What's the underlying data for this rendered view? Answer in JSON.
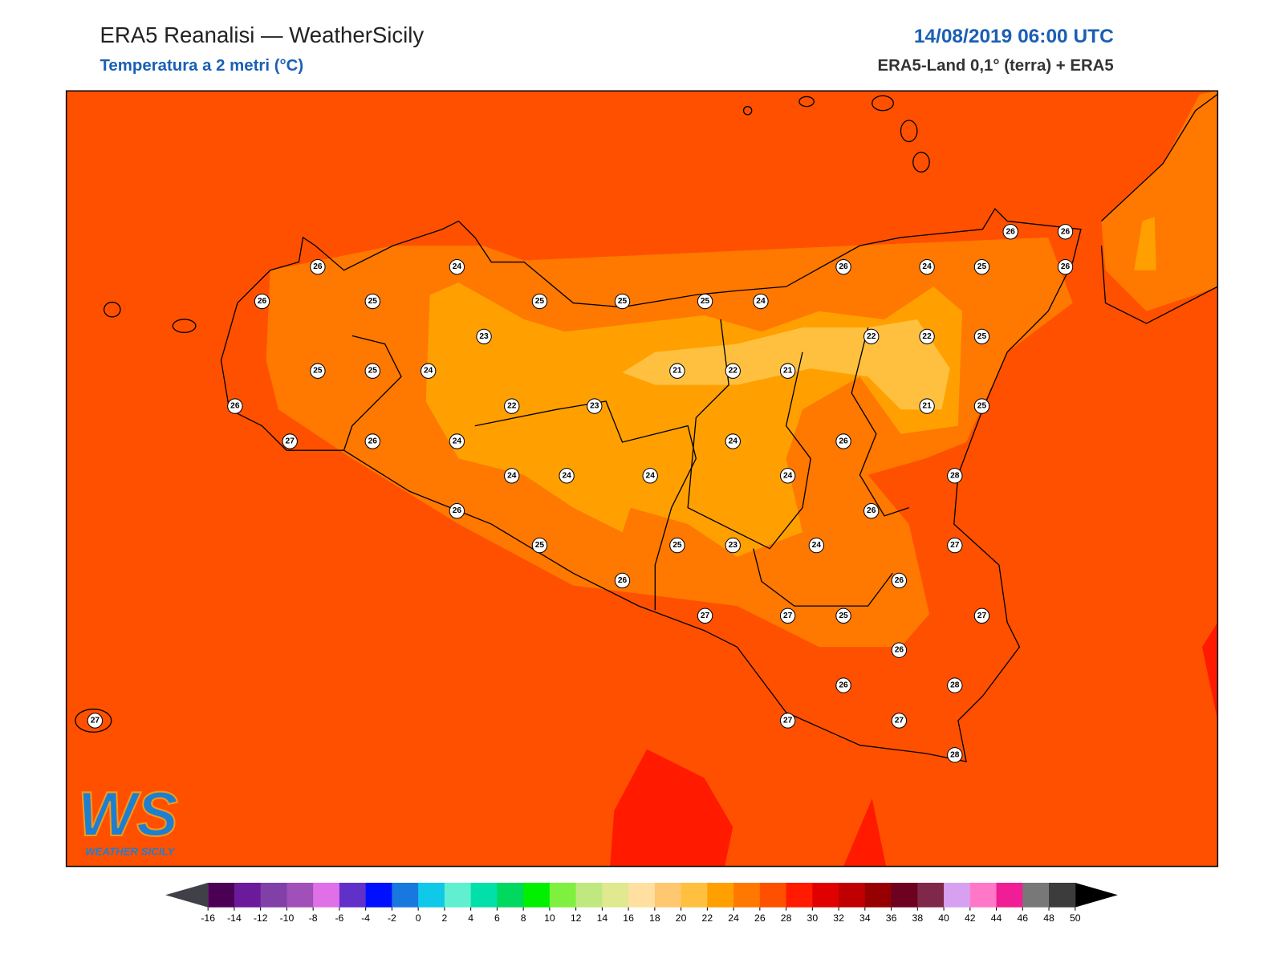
{
  "header": {
    "title": "ERA5 Reanalisi — WeatherSicily",
    "subtitle": "Temperatura a 2 metri (°C)",
    "date": "14/08/2019 06:00 UTC",
    "source": "ERA5-Land 0,1° (terra) + ERA5"
  },
  "logo": {
    "mark": "WS",
    "name": "WEATHER SICILY"
  },
  "stations": [
    26,
    24,
    26,
    25,
    25,
    25,
    25,
    24,
    26,
    24,
    25,
    26,
    26,
    26,
    23,
    22,
    22,
    25,
    25,
    25,
    24,
    21,
    22,
    21,
    26,
    22,
    23,
    21,
    25,
    27,
    26,
    24,
    24,
    26,
    24,
    24,
    24,
    24,
    28,
    26,
    26,
    25,
    25,
    23,
    24,
    27,
    26,
    26,
    27,
    27,
    25,
    27,
    26,
    26,
    28,
    27,
    27,
    27,
    28
  ],
  "colorbar": {
    "ticks": [
      -16,
      -14,
      -12,
      -10,
      -8,
      -6,
      -4,
      -2,
      0,
      2,
      4,
      6,
      8,
      10,
      12,
      14,
      16,
      18,
      20,
      22,
      24,
      26,
      28,
      30,
      32,
      34,
      36,
      38,
      40,
      42,
      44,
      46,
      48,
      50
    ],
    "colors": [
      "#4b0055",
      "#6a1a9a",
      "#8040a8",
      "#a050b8",
      "#e070e8",
      "#6030c8",
      "#0010ff",
      "#1878e0",
      "#10c8e8",
      "#60f0d0",
      "#00e0a8",
      "#00d860",
      "#00f000",
      "#80f040",
      "#c0e880",
      "#e0e890",
      "#ffe0a0",
      "#ffc870",
      "#ffc040",
      "#ffa000",
      "#ff7800",
      "#ff5000",
      "#ff1a00",
      "#e00000",
      "#c00000",
      "#960000",
      "#6e0020",
      "#80284a",
      "#d8a0f0",
      "#ff78c8",
      "#f01e96",
      "#787878",
      "#3c3c3c"
    ],
    "under": "#404048",
    "over": "#000000"
  }
}
